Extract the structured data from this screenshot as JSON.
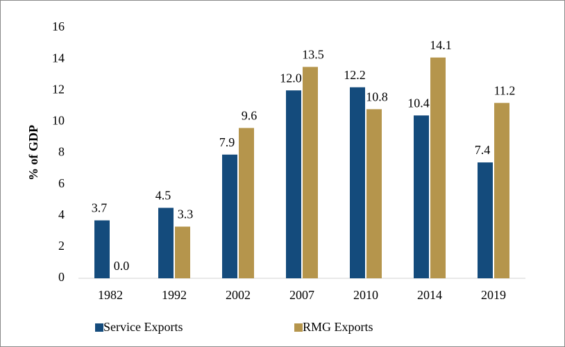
{
  "chart_data": {
    "type": "bar",
    "y_label": "% of GDP",
    "categories": [
      "1982",
      "1992",
      "2002",
      "2007",
      "2010",
      "2014",
      "2019"
    ],
    "series": [
      {
        "name": "Service Exports",
        "color": "#144b7c",
        "values": [
          3.7,
          4.5,
          7.9,
          12.0,
          12.2,
          10.4,
          7.4
        ],
        "value_labels": [
          "3.7",
          "4.5",
          "7.9",
          "12.0",
          "12.2",
          "10.4",
          "7.4"
        ]
      },
      {
        "name": "RMG Exports",
        "color": "#b5954c",
        "values": [
          0.0,
          3.3,
          9.6,
          13.5,
          10.8,
          14.1,
          11.2
        ],
        "value_labels": [
          "0.0",
          "3.3",
          "9.6",
          "13.5",
          "10.8",
          "14.1",
          "11.2"
        ]
      }
    ],
    "ylim": [
      0,
      16
    ],
    "yticks": [
      0,
      2,
      4,
      6,
      8,
      10,
      12,
      14,
      16
    ],
    "grid": false,
    "legend": "bottom"
  }
}
